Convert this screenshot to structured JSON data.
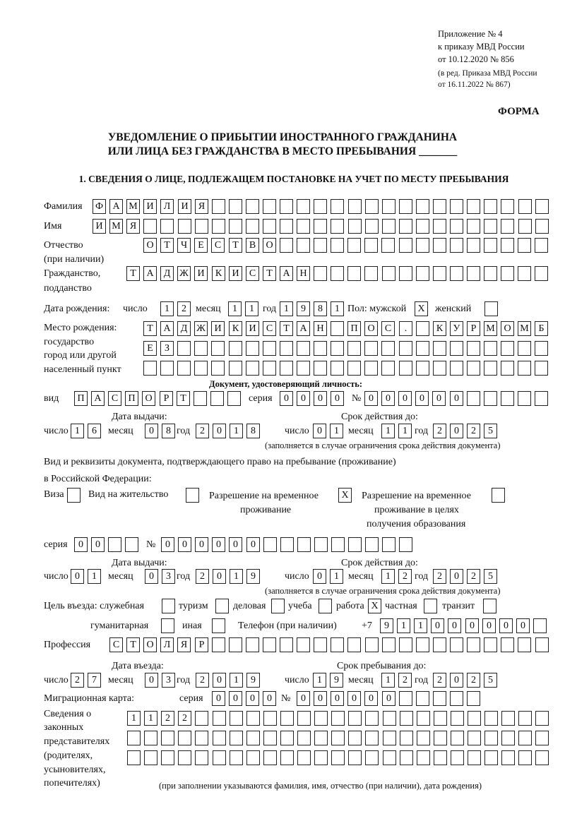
{
  "header": {
    "line1": "Приложение № 4",
    "line2": "к приказу МВД России",
    "line3": "от 10.12.2020 № 856",
    "line4": "(в ред. Приказа МВД России",
    "line5": "от 16.11.2022 № 867)",
    "forma": "ФОРМА"
  },
  "title": {
    "line1": "УВЕДОМЛЕНИЕ О ПРИБЫТИИ ИНОСТРАННОГО ГРАЖДАНИНА",
    "line2": "ИЛИ ЛИЦА БЕЗ ГРАЖДАНСТВА В МЕСТО ПРЕБЫВАНИЯ _______"
  },
  "section1": "1. СВЕДЕНИЯ О ЛИЦЕ, ПОДЛЕЖАЩЕМ ПОСТАНОВКЕ НА УЧЕТ ПО МЕСТУ ПРЕБЫВАНИЯ",
  "labels": {
    "surname": "Фамилия",
    "name": "Имя",
    "patronymic": "Отчество",
    "patronymic2": "(при наличии)",
    "citizenship": "Гражданство,",
    "citizenship2": "подданство",
    "birth_date": "Дата рождения:",
    "day": "число",
    "month": "месяц",
    "year": "год",
    "sex": "Пол: мужской",
    "female": "женский",
    "birthplace1": "Место рождения:",
    "birthplace2": "государство",
    "birthplace3": "город или другой",
    "birthplace4": "населенный пункт",
    "id_doc": "Документ, удостоверяющий личность:",
    "kind": "вид",
    "series": "серия",
    "number": "№",
    "issue_date": "Дата выдачи:",
    "valid_until": "Срок действия до:",
    "validity_note": "(заполняется в случае ограничения срока действия документа)",
    "right_doc1": "Вид и реквизиты документа, подтверждающего право на пребывание (проживание)",
    "right_doc2": "в Российской Федерации:",
    "visa": "Виза",
    "residence": "Вид на жительство",
    "rvp1": "Разрешение на временное",
    "rvp2": "проживание",
    "rvp_edu1": "Разрешение на временное",
    "rvp_edu2": "проживание в целях",
    "rvp_edu3": "получения образования",
    "purpose": "Цель въезда: служебная",
    "tourism": "туризм",
    "business": "деловая",
    "study": "учеба",
    "work": "работа",
    "private": "частная",
    "transit": "транзит",
    "humanitarian": "гуманитарная",
    "other": "иная",
    "phone": "Телефон (при наличии)",
    "phone_prefix": "+7",
    "profession": "Профессия",
    "entry_date": "Дата въезда:",
    "stay_until": "Срок пребывания до:",
    "migration_card": "Миграционная карта:",
    "reps1": "Сведения о",
    "reps2": "законных",
    "reps3": "представителях",
    "reps4": "(родителях,",
    "reps5": "усыновителях,",
    "reps6": "попечителях)",
    "reps_note": "(при заполнении указываются фамилия, имя, отчество (при наличии), дата рождения)"
  },
  "fields": {
    "surname": "ФАМИЛИЯ",
    "name": "ИМЯ",
    "patronymic": "ОТЧЕСТВО",
    "citizenship": "ТАДЖИКИСТАН",
    "birth_day": "12",
    "birth_month": "11",
    "birth_year": "1981",
    "sex_male": "X",
    "sex_female": "",
    "birthplace_row1": "ТАДЖИКИСТАН ПОС. КУРМОМБ",
    "birthplace_row2": "ЕЗ",
    "birthplace_row3": "",
    "id_kind": "ПАСПОРТ",
    "id_series": "0000",
    "id_number": "000000",
    "id_issue_day": "16",
    "id_issue_month": "08",
    "id_issue_year": "2018",
    "id_valid_day": "01",
    "id_valid_month": "11",
    "id_valid_year": "2025",
    "visa": "",
    "residence_permit": "",
    "rvp": "X",
    "rvp_edu": "",
    "right_series": "00",
    "right_number": "000000",
    "right_issue_day": "01",
    "right_issue_month": "03",
    "right_issue_year": "2019",
    "right_valid_day": "01",
    "right_valid_month": "12",
    "right_valid_year": "2025",
    "purpose_service": "",
    "purpose_tourism": "",
    "purpose_business": "",
    "purpose_study": "",
    "purpose_work": "X",
    "purpose_private": "",
    "purpose_transit": "",
    "purpose_humanitarian": "",
    "purpose_other": "",
    "phone": "911000000",
    "profession": "СТОЛЯР",
    "entry_day": "27",
    "entry_month": "03",
    "entry_year": "2019",
    "stay_day": "19",
    "stay_month": "12",
    "stay_year": "2025",
    "mc_series": "0000",
    "mc_number": "000000",
    "reps_row1": "1122",
    "reps_row2": "",
    "reps_row3": ""
  }
}
